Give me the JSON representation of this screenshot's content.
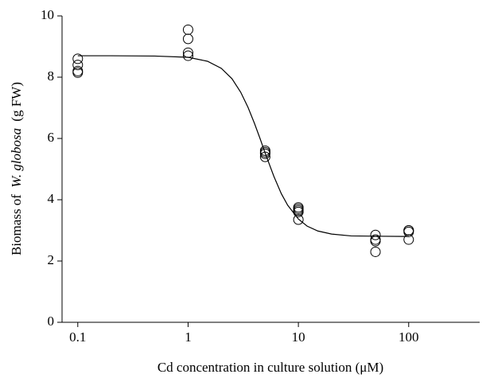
{
  "chart_data": {
    "type": "scatter",
    "xlabel": "Cd concentration in culture solution (μM)",
    "ylabel": [
      "Biomass of",
      "W. globosa",
      "(g FW)"
    ],
    "xscale": "log",
    "xlim": [
      0.072,
      440
    ],
    "xticks": [
      0.1,
      1,
      10,
      100
    ],
    "ylim": [
      0,
      10
    ],
    "yticks": [
      0,
      2,
      4,
      6,
      8,
      10
    ],
    "series": [
      {
        "type": "scatter",
        "color": "#000000",
        "x": [
          0.1,
          0.1,
          0.1,
          0.1,
          1,
          1,
          1,
          1,
          5,
          5,
          5,
          5,
          10,
          10,
          10,
          10,
          10,
          50,
          50,
          50,
          50,
          100,
          100,
          100,
          100
        ],
        "values": [
          8.6,
          8.4,
          8.2,
          8.15,
          9.55,
          9.25,
          8.8,
          8.7,
          5.6,
          5.55,
          5.5,
          5.4,
          3.75,
          3.7,
          3.65,
          3.6,
          3.35,
          2.85,
          2.7,
          2.65,
          2.3,
          3.0,
          3.0,
          2.95,
          2.7
        ]
      },
      {
        "type": "line",
        "color": "#000000",
        "x": [
          0.1,
          0.2,
          0.5,
          1,
          1.5,
          2,
          2.5,
          3,
          3.5,
          4,
          4.5,
          5,
          6,
          7,
          8,
          10,
          12,
          15,
          20,
          30,
          50,
          100
        ],
        "values": [
          8.7,
          8.7,
          8.69,
          8.65,
          8.52,
          8.29,
          7.95,
          7.51,
          7.01,
          6.49,
          5.99,
          5.52,
          4.76,
          4.2,
          3.82,
          3.37,
          3.14,
          2.98,
          2.88,
          2.82,
          2.81,
          2.8
        ]
      }
    ]
  }
}
